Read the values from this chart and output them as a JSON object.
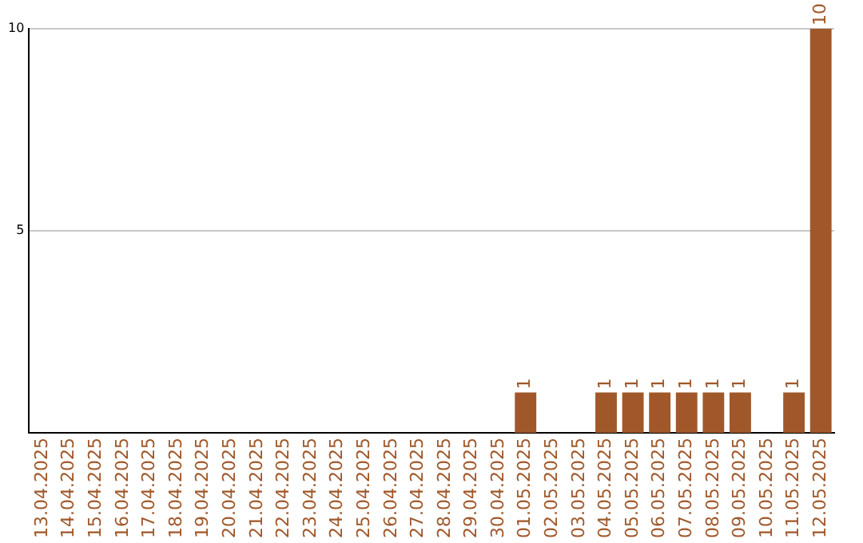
{
  "chart_data": {
    "type": "bar",
    "categories": [
      "13.04.2025",
      "14.04.2025",
      "15.04.2025",
      "16.04.2025",
      "17.04.2025",
      "18.04.2025",
      "19.04.2025",
      "20.04.2025",
      "21.04.2025",
      "22.04.2025",
      "23.04.2025",
      "24.04.2025",
      "25.04.2025",
      "26.04.2025",
      "27.04.2025",
      "28.04.2025",
      "29.04.2025",
      "30.04.2025",
      "01.05.2025",
      "02.05.2025",
      "03.05.2025",
      "04.05.2025",
      "05.05.2025",
      "06.05.2025",
      "07.05.2025",
      "08.05.2025",
      "09.05.2025",
      "10.05.2025",
      "11.05.2025",
      "12.05.2025"
    ],
    "values": [
      0,
      0,
      0,
      0,
      0,
      0,
      0,
      0,
      0,
      0,
      0,
      0,
      0,
      0,
      0,
      0,
      0,
      0,
      1,
      0,
      0,
      1,
      1,
      1,
      1,
      1,
      1,
      0,
      1,
      10
    ],
    "value_labels": [
      null,
      null,
      null,
      null,
      null,
      null,
      null,
      null,
      null,
      null,
      null,
      null,
      null,
      null,
      null,
      null,
      null,
      null,
      "1",
      null,
      null,
      "1",
      "1",
      "1",
      "1",
      "1",
      "1",
      null,
      "1",
      "10"
    ],
    "color": "#a0582a",
    "ylim": [
      0,
      10
    ],
    "yticks": [
      5,
      10
    ],
    "grid": "y",
    "legend": false
  }
}
